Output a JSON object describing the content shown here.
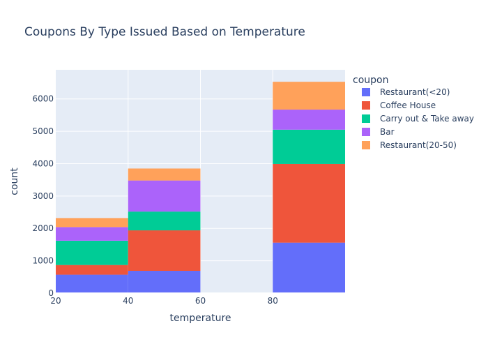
{
  "chart_data": {
    "type": "bar",
    "title": "Coupons By Type Issued Based on Temperature",
    "xlabel": "temperature",
    "ylabel": "count",
    "xlim": [
      20,
      100
    ],
    "ylim": [
      0,
      6900
    ],
    "xticks": [
      20,
      40,
      60,
      80
    ],
    "yticks": [
      0,
      1000,
      2000,
      3000,
      4000,
      5000,
      6000
    ],
    "bins": [
      {
        "x0": 20,
        "x1": 40
      },
      {
        "x0": 40,
        "x1": 60
      },
      {
        "x0": 60,
        "x1": 80
      },
      {
        "x0": 80,
        "x1": 100
      }
    ],
    "legend_title": "coupon",
    "legend_position": "right",
    "grid": true,
    "background_color": "#e5ecf6",
    "series": [
      {
        "name": "Restaurant(<20)",
        "color": "#636efa",
        "values": [
          570,
          690,
          0,
          1560
        ]
      },
      {
        "name": "Coffee House",
        "color": "#ef553b",
        "values": [
          300,
          1250,
          0,
          2430
        ]
      },
      {
        "name": "Carry out & Take away",
        "color": "#00cc96",
        "values": [
          750,
          580,
          0,
          1060
        ]
      },
      {
        "name": "Bar",
        "color": "#ab63fa",
        "values": [
          420,
          960,
          0,
          620
        ]
      },
      {
        "name": "Restaurant(20-50)",
        "color": "#ffa15a",
        "values": [
          280,
          370,
          0,
          860
        ]
      }
    ]
  }
}
